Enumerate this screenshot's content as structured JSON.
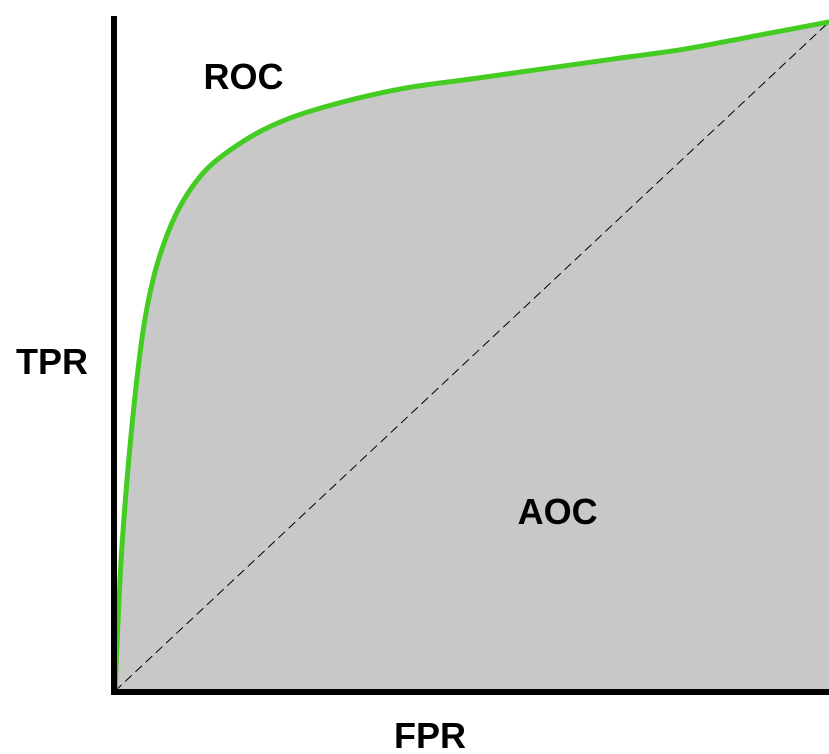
{
  "chart_data": {
    "type": "area",
    "title": "",
    "xlabel": "FPR",
    "ylabel": "TPR",
    "xlim": [
      0,
      1
    ],
    "ylim": [
      0,
      1
    ],
    "grid": false,
    "legend": "none",
    "series": [
      {
        "x": [
          0,
          0.01,
          0.03,
          0.05,
          0.08,
          0.12,
          0.17,
          0.23,
          0.3,
          0.4,
          0.5,
          0.6,
          0.7,
          0.8,
          0.9,
          1
        ],
        "y": [
          0,
          0.22,
          0.46,
          0.6,
          0.7,
          0.77,
          0.815,
          0.85,
          0.875,
          0.9,
          0.915,
          0.93,
          0.945,
          0.96,
          0.98,
          1
        ],
        "color": "#44cc22",
        "fill": "#c8c8c8"
      }
    ],
    "reference_line": {
      "x": [
        0,
        1
      ],
      "y": [
        0,
        1
      ],
      "style": "dashed",
      "color": "#000000"
    },
    "annotations": [
      {
        "text": "ROC",
        "x": 0.18,
        "y": 0.9
      },
      {
        "text": "AOC",
        "x": 0.62,
        "y": 0.25
      }
    ]
  }
}
